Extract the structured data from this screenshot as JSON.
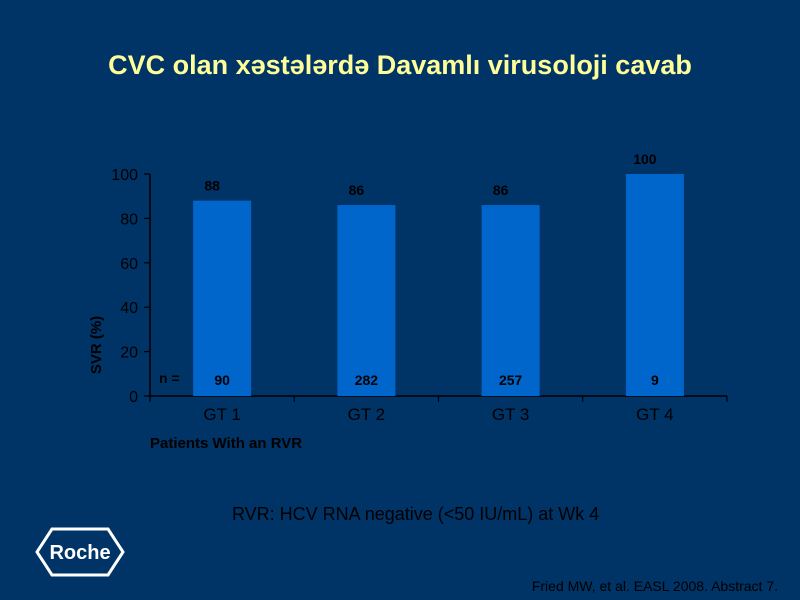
{
  "slide": {
    "title": "CVC olan xəstələrdə Davamlı virusoloji cavab",
    "footnote": "RVR: HCV RNA negative (<50 IU/mL) at Wk 4",
    "citation": "Fried MW, et al. EASL 2008. Abstract 7.",
    "logo_text": "Roche"
  },
  "colors": {
    "background": "#003366",
    "title": "#FFFF99",
    "bar": "#0066CC",
    "text": "#000000",
    "logo": "#FFFFFF"
  },
  "chart_data": {
    "type": "bar",
    "title": "",
    "xlabel": "Patients With an RVR",
    "ylabel": "SVR (%)",
    "ylim": [
      0,
      100
    ],
    "yticks": [
      0,
      20,
      40,
      60,
      80,
      100
    ],
    "categories": [
      "GT 1",
      "GT 2",
      "GT 3",
      "GT 4"
    ],
    "values": [
      88,
      86,
      86,
      100
    ],
    "value_labels": [
      "88",
      "86",
      "86",
      "100"
    ],
    "n_prefix": "n =",
    "n_values": [
      "90",
      "282",
      "257",
      "9"
    ],
    "grid": false,
    "legend": "none"
  }
}
